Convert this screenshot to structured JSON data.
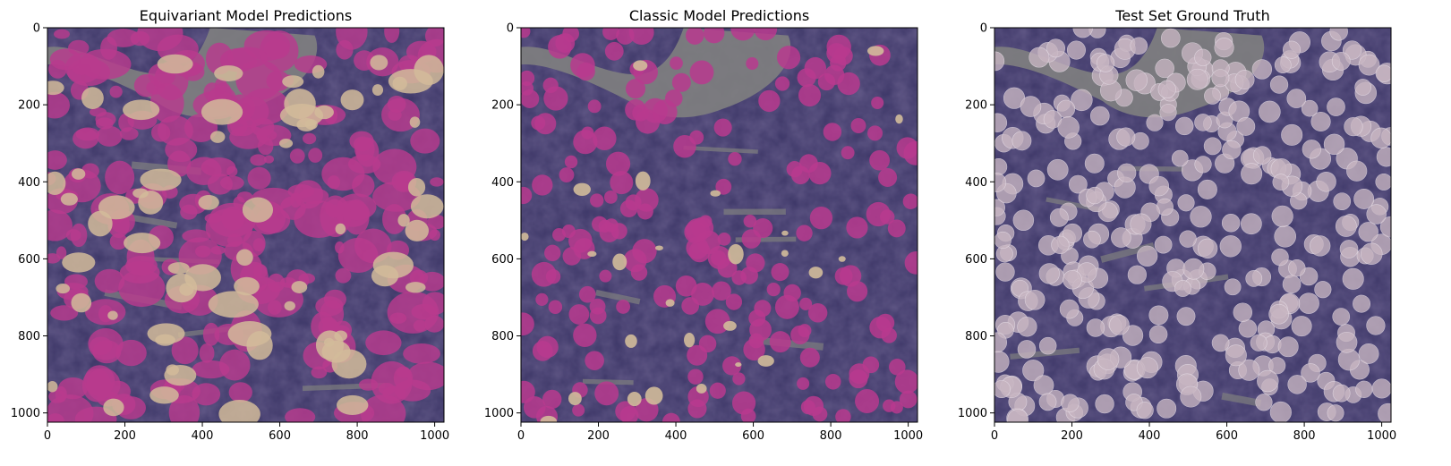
{
  "chart_data": [
    {
      "type": "heatmap",
      "title": "Equivariant Model Predictions",
      "xlim": [
        0,
        1024
      ],
      "ylim": [
        1024,
        0
      ],
      "x_ticks": [
        "0",
        "200",
        "400",
        "600",
        "800",
        "1000"
      ],
      "y_ticks": [
        "0",
        "200",
        "400",
        "600",
        "800",
        "1000"
      ],
      "grid": false
    },
    {
      "type": "heatmap",
      "title": "Classic Model Predictions",
      "xlim": [
        0,
        1024
      ],
      "ylim": [
        1024,
        0
      ],
      "x_ticks": [
        "0",
        "200",
        "400",
        "600",
        "800",
        "1000"
      ],
      "y_ticks": [
        "0",
        "200",
        "400",
        "600",
        "800",
        "1000"
      ],
      "grid": false
    },
    {
      "type": "heatmap",
      "title": "Test Set Ground Truth",
      "xlim": [
        0,
        1024
      ],
      "ylim": [
        1024,
        0
      ],
      "x_ticks": [
        "0",
        "200",
        "400",
        "600",
        "800",
        "1000"
      ],
      "y_ticks": [
        "0",
        "200",
        "400",
        "600",
        "800",
        "1000"
      ],
      "grid": false
    }
  ],
  "colors": {
    "tissue_background": "#3b3566",
    "tissue_dark": "#2a2240",
    "empty_region": "#7f7f7f",
    "prediction_magenta": "#b83a8e",
    "prediction_beige": "#d2bb9a",
    "ground_truth_disc": "#c8b6c2"
  }
}
